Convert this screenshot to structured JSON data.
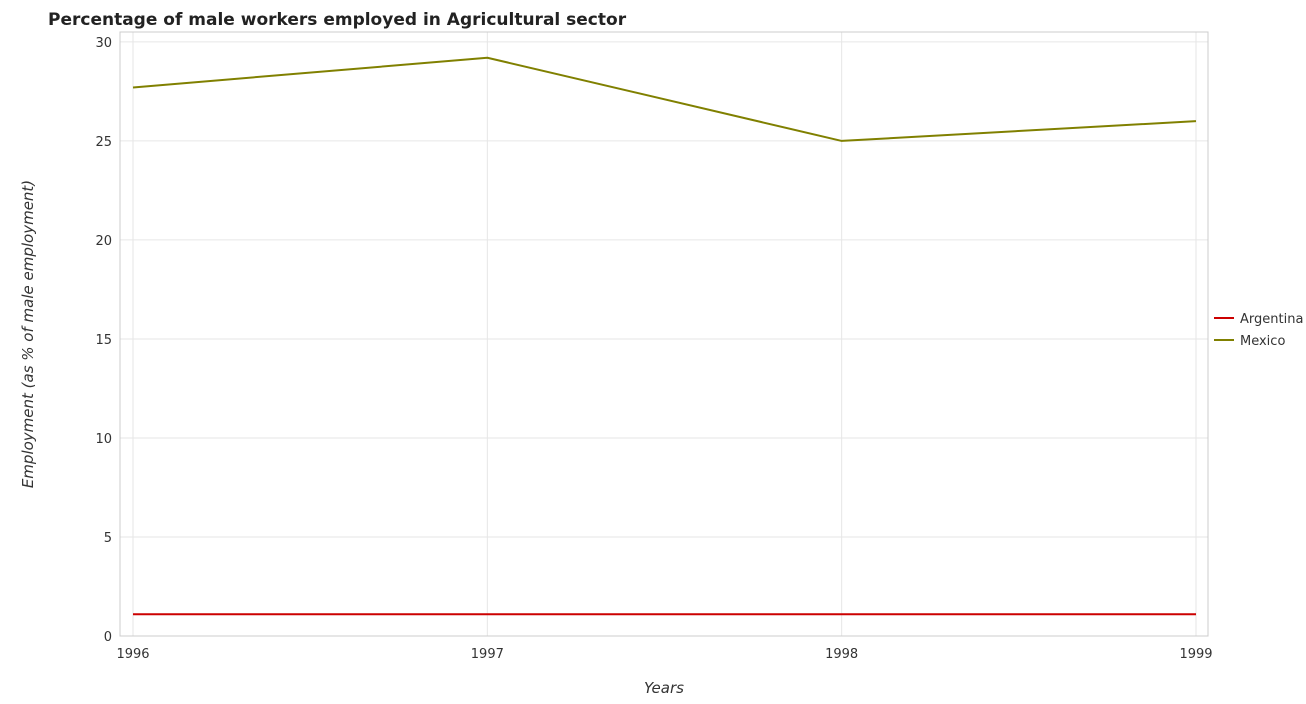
{
  "chart_data": {
    "type": "line",
    "title": "Percentage of male workers employed in Agricultural sector",
    "xlabel": "Years",
    "ylabel": "Employment (as % of male employment)",
    "categories": [
      "1996",
      "1997",
      "1998",
      "1999"
    ],
    "ylim": [
      0,
      30.5
    ],
    "yticks": [
      0,
      5,
      10,
      15,
      20,
      25,
      30
    ],
    "grid": true,
    "legend_position": "right",
    "series": [
      {
        "name": "Argentina",
        "color": "#cc0000",
        "values": [
          1.1,
          1.1,
          1.1,
          1.1
        ]
      },
      {
        "name": "Mexico",
        "color": "#808000",
        "values": [
          27.7,
          29.2,
          25.0,
          26.0
        ]
      }
    ]
  }
}
